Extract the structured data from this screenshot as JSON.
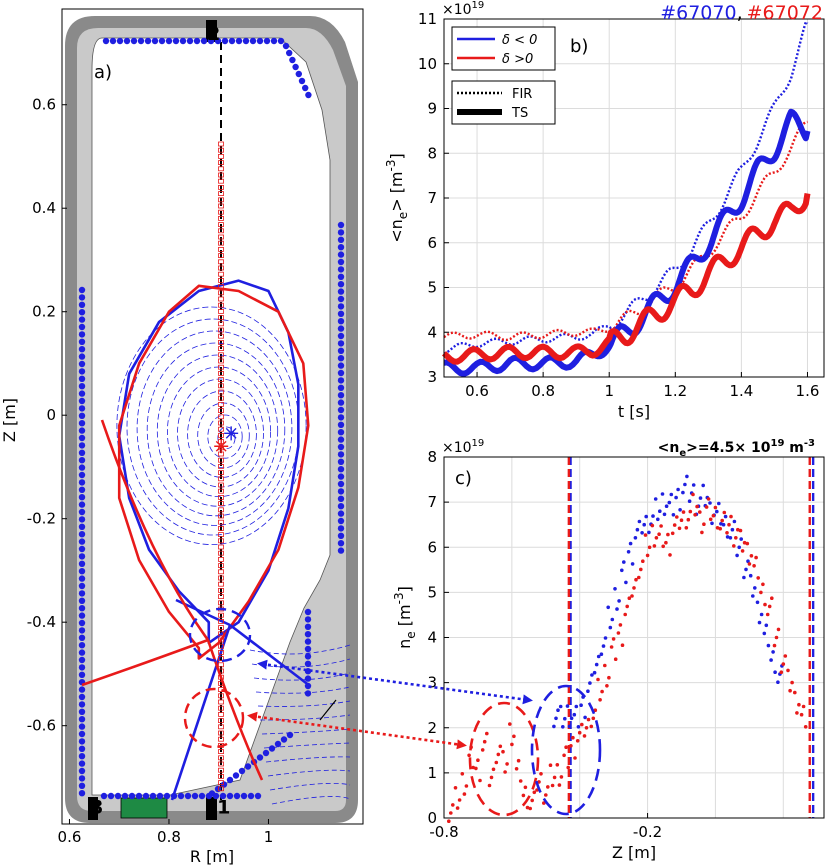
{
  "colors": {
    "blue": "#1f1fe0",
    "red": "#e81a1a",
    "wall": "#8a8a8a",
    "wall_light": "#c9c9c9",
    "green": "#1e8a44",
    "grid": "#dcdcdc"
  },
  "header": {
    "shot_a": "#67070",
    "shot_sep": ",",
    "shot_b": "#67072"
  },
  "chart_data": [
    {
      "id": "a",
      "type": "scatter",
      "panel_label": "a)",
      "xlabel": "R [m]",
      "ylabel": "Z [m]",
      "xlim": [
        0.585,
        1.19
      ],
      "ylim": [
        -0.79,
        0.785
      ],
      "xticks": [
        0.6,
        0.8,
        1
      ],
      "xtick_labels": [
        "0.6",
        "0.8",
        "1"
      ],
      "yticks": [
        0.6,
        0.4,
        0.2,
        0,
        -0.2,
        -0.4,
        -0.6
      ],
      "ytick_labels": [
        "0.6",
        "0.4",
        "0.2",
        "0",
        "-0.2",
        "-0.4",
        "-0.6"
      ],
      "annotations": [
        {
          "text": "1",
          "r": 0.91,
          "z": -0.77
        },
        {
          "text": "2",
          "r": 0.89,
          "z": 0.725
        },
        {
          "text": "3",
          "r": 0.655,
          "z": -0.77
        }
      ],
      "separatrix": [
        {
          "series": "δ < 0",
          "color": "blue",
          "r": [
            0.88,
            0.82,
            0.76,
            0.72,
            0.7,
            0.72,
            0.78,
            0.86,
            0.94,
            1.0,
            1.04,
            1.06,
            1.06,
            1.04,
            1.0,
            0.94,
            0.88
          ],
          "z": [
            -0.4,
            -0.34,
            -0.26,
            -0.16,
            -0.04,
            0.08,
            0.18,
            0.24,
            0.26,
            0.24,
            0.16,
            0.06,
            -0.06,
            -0.18,
            -0.3,
            -0.4,
            -0.44
          ]
        },
        {
          "series": "δ >0",
          "color": "red",
          "r": [
            0.86,
            0.8,
            0.74,
            0.7,
            0.7,
            0.74,
            0.8,
            0.86,
            0.94,
            1.02,
            1.07,
            1.08,
            1.06,
            1.02,
            0.96,
            0.9,
            0.86
          ],
          "z": [
            -0.45,
            -0.38,
            -0.28,
            -0.16,
            -0.02,
            0.1,
            0.2,
            0.25,
            0.24,
            0.2,
            0.1,
            -0.02,
            -0.14,
            -0.26,
            -0.36,
            -0.44,
            -0.47
          ]
        }
      ],
      "magnetic_axis": [
        {
          "color": "blue",
          "r": 0.925,
          "z": -0.035
        },
        {
          "color": "red",
          "r": 0.905,
          "z": -0.06
        }
      ]
    },
    {
      "id": "b",
      "type": "line",
      "panel_label": "b)",
      "xlabel": "t [s]",
      "ylabel": "<n_e> [m^-3]",
      "y_exponent": "×10^19",
      "xlim": [
        0.5,
        1.65
      ],
      "ylim": [
        3,
        11
      ],
      "xticks": [
        0.6,
        0.8,
        1,
        1.2,
        1.4,
        1.6
      ],
      "xtick_labels": [
        "0.6",
        "0.8",
        "1",
        "1.2",
        "1.4",
        "1.6"
      ],
      "yticks": [
        3,
        4,
        5,
        6,
        7,
        8,
        9,
        10,
        11
      ],
      "ytick_labels": [
        "3",
        "4",
        "5",
        "6",
        "7",
        "8",
        "9",
        "10",
        "11"
      ],
      "grid": true,
      "legend_position": "top-left",
      "legend": [
        {
          "label": "δ < 0",
          "color": "blue",
          "style": "solid"
        },
        {
          "label": "δ >0",
          "color": "red",
          "style": "solid"
        }
      ],
      "legend2": [
        {
          "label": "FIR",
          "style": "dotted"
        },
        {
          "label": "TS",
          "style": "thick"
        }
      ],
      "series": [
        {
          "name": "δ < 0",
          "diag": "FIR",
          "color": "blue",
          "x": [
            0.5,
            0.6,
            0.7,
            0.8,
            0.9,
            0.95,
            1.0,
            1.05,
            1.1,
            1.15,
            1.2,
            1.25,
            1.3,
            1.35,
            1.4,
            1.45,
            1.5,
            1.55,
            1.6
          ],
          "y": [
            3.6,
            3.75,
            3.8,
            3.85,
            3.9,
            3.95,
            4.15,
            4.4,
            4.75,
            5.05,
            5.4,
            5.85,
            6.4,
            7.0,
            7.6,
            8.3,
            9.0,
            9.8,
            10.9
          ]
        },
        {
          "name": "δ >0",
          "diag": "FIR",
          "color": "red",
          "x": [
            0.5,
            0.6,
            0.7,
            0.8,
            0.9,
            0.95,
            1.0,
            1.05,
            1.1,
            1.15,
            1.2,
            1.25,
            1.3,
            1.35,
            1.4,
            1.45,
            1.5,
            1.55,
            1.6
          ],
          "y": [
            3.9,
            3.95,
            3.9,
            3.95,
            4.0,
            4.0,
            4.1,
            4.3,
            4.55,
            4.8,
            5.05,
            5.4,
            5.8,
            6.2,
            6.6,
            7.1,
            7.6,
            8.1,
            8.7
          ]
        },
        {
          "name": "δ < 0",
          "diag": "TS",
          "color": "blue",
          "x": [
            0.5,
            0.6,
            0.7,
            0.8,
            0.9,
            0.95,
            1.0,
            1.05,
            1.1,
            1.15,
            1.2,
            1.25,
            1.3,
            1.35,
            1.4,
            1.45,
            1.5,
            1.55,
            1.6
          ],
          "y": [
            3.2,
            3.2,
            3.3,
            3.3,
            3.35,
            3.5,
            3.7,
            4.0,
            4.35,
            4.7,
            5.05,
            5.5,
            6.0,
            6.5,
            7.0,
            7.6,
            8.1,
            8.7,
            8.5
          ]
        },
        {
          "name": "δ >0",
          "diag": "TS",
          "color": "red",
          "x": [
            0.5,
            0.6,
            0.7,
            0.8,
            0.9,
            0.95,
            1.0,
            1.05,
            1.1,
            1.15,
            1.2,
            1.25,
            1.3,
            1.35,
            1.4,
            1.45,
            1.5,
            1.55,
            1.6
          ],
          "y": [
            3.45,
            3.5,
            3.55,
            3.55,
            3.55,
            3.6,
            3.75,
            3.95,
            4.2,
            4.45,
            4.7,
            4.95,
            5.3,
            5.6,
            5.9,
            6.2,
            6.5,
            6.7,
            7.1
          ]
        }
      ]
    },
    {
      "id": "c",
      "type": "scatter",
      "panel_label": "c)",
      "title": "<n_e>=4.5× 10^19 m^-3",
      "xlabel": "Z [m]",
      "ylabel": "n_e [m^-3]",
      "y_exponent": "×10^19",
      "xlim": [
        -0.8,
        0.32
      ],
      "ylim": [
        0,
        8
      ],
      "xticks": [
        -0.8,
        -0.2
      ],
      "xtick_labels": [
        "-0.8",
        "-0.2"
      ],
      "yticks": [
        0,
        1,
        2,
        3,
        4,
        5,
        6,
        7,
        8
      ],
      "ytick_labels": [
        "0",
        "1",
        "2",
        "3",
        "4",
        "5",
        "6",
        "7",
        "8"
      ],
      "grid": true,
      "vlines": [
        {
          "color": "blue",
          "x": -0.427
        },
        {
          "color": "red",
          "x": -0.432
        },
        {
          "color": "blue",
          "x": 0.288
        },
        {
          "color": "red",
          "x": 0.278
        }
      ],
      "series": [
        {
          "name": "δ < 0",
          "color": "blue",
          "x": [
            -0.47,
            -0.45,
            -0.43,
            -0.41,
            -0.39,
            -0.37,
            -0.35,
            -0.33,
            -0.31,
            -0.29,
            -0.27,
            -0.25,
            -0.23,
            -0.21,
            -0.19,
            -0.17,
            -0.15,
            -0.13,
            -0.11,
            -0.09,
            -0.07,
            -0.05,
            -0.03,
            -0.01,
            0.01,
            0.03,
            0.05,
            0.07,
            0.09,
            0.11,
            0.13,
            0.15,
            0.17,
            0.19
          ],
          "y": [
            2.3,
            2.2,
            2.3,
            2.2,
            2.5,
            2.9,
            3.4,
            3.9,
            4.4,
            4.9,
            5.4,
            5.9,
            6.3,
            6.5,
            6.6,
            6.8,
            7.0,
            6.9,
            7.1,
            7.3,
            7.2,
            7.0,
            7.1,
            6.8,
            6.7,
            6.5,
            6.3,
            6.0,
            5.6,
            5.1,
            4.6,
            4.0,
            3.5,
            3.1
          ]
        },
        {
          "name": "δ >0",
          "color": "red",
          "x": [
            -0.78,
            -0.76,
            -0.74,
            -0.72,
            -0.7,
            -0.68,
            -0.66,
            -0.64,
            -0.62,
            -0.6,
            -0.58,
            -0.56,
            -0.54,
            -0.52,
            -0.5,
            -0.48,
            -0.46,
            -0.44,
            -0.42,
            -0.4,
            -0.38,
            -0.36,
            -0.34,
            -0.32,
            -0.3,
            -0.28,
            -0.26,
            -0.24,
            -0.22,
            -0.2,
            -0.18,
            -0.16,
            -0.14,
            -0.12,
            -0.1,
            -0.08,
            -0.06,
            -0.04,
            -0.02,
            0.0,
            0.02,
            0.04,
            0.06,
            0.08,
            0.1,
            0.12,
            0.14,
            0.16,
            0.18,
            0.2,
            0.22,
            0.24,
            0.26
          ],
          "y": [
            0.2,
            0.4,
            0.8,
            1.3,
            1.1,
            1.6,
            0.9,
            1.5,
            1.2,
            1.9,
            1.0,
            0.5,
            0.3,
            0.8,
            0.6,
            0.9,
            1.0,
            1.3,
            1.6,
            1.8,
            2.0,
            2.3,
            2.8,
            3.2,
            3.7,
            4.1,
            4.6,
            5.1,
            5.6,
            6.0,
            6.3,
            6.2,
            6.1,
            6.4,
            6.6,
            6.7,
            6.9,
            6.6,
            6.8,
            6.7,
            6.5,
            6.5,
            6.3,
            6.1,
            5.9,
            5.5,
            5.0,
            4.6,
            4.0,
            3.5,
            3.0,
            2.6,
            2.2
          ]
        }
      ]
    }
  ]
}
